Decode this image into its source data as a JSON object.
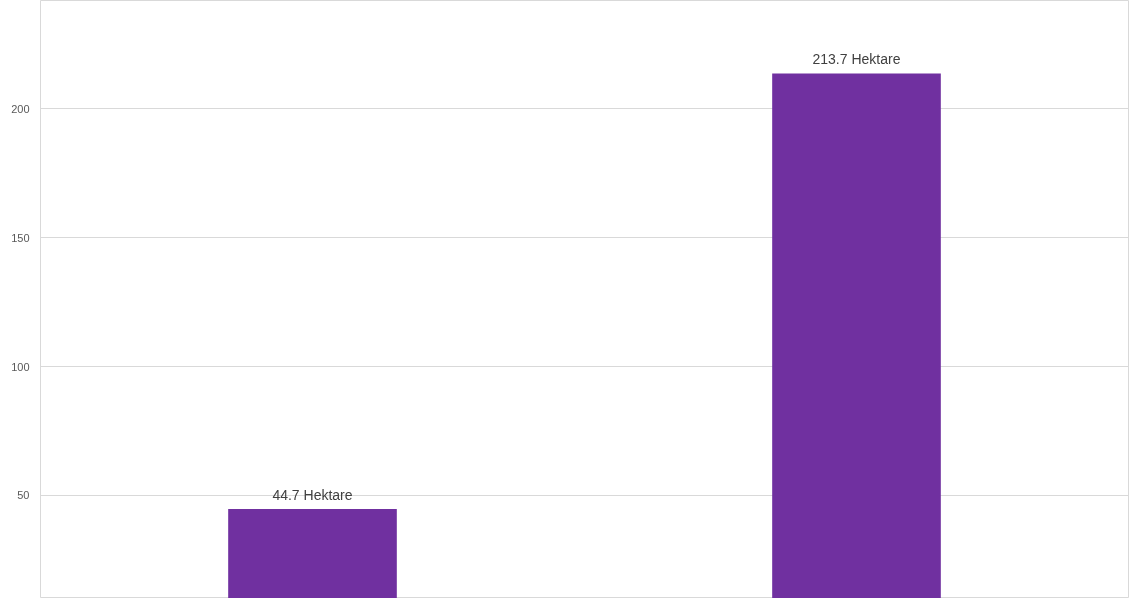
{
  "chart_data": {
    "type": "bar",
    "categories": [
      null,
      null
    ],
    "values": [
      44.7,
      213.7
    ],
    "value_labels": [
      "44.7 Hektare",
      "213.7 Hektare"
    ],
    "color": "#7030a0",
    "ylim": [
      10,
      242
    ],
    "yticks": [
      50,
      100,
      150,
      200
    ],
    "grid": "y",
    "tick_labels": "y"
  }
}
